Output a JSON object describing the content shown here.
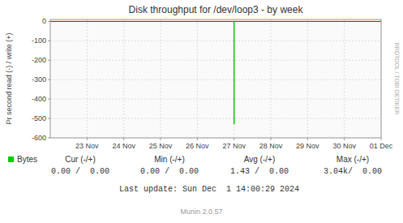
{
  "chart_data": {
    "type": "line",
    "title": "Disk throughput for /dev/loop3 - by week",
    "ylabel": "Pr second read (-) / write (+)",
    "x": [
      1732665600,
      1732665600
    ],
    "series": [
      {
        "name": "Bytes",
        "color": "#00cc00",
        "values": [
          0,
          -530
        ]
      }
    ],
    "xlim": [
      1732233600,
      1733011200
    ],
    "xticks": [
      {
        "value": 1732320000,
        "label": "23 Nov"
      },
      {
        "value": 1732406400,
        "label": "24 Nov"
      },
      {
        "value": 1732492800,
        "label": "25 Nov"
      },
      {
        "value": 1732579200,
        "label": "26 Nov"
      },
      {
        "value": 1732665600,
        "label": "27 Nov"
      },
      {
        "value": 1732752000,
        "label": "28 Nov"
      },
      {
        "value": 1732838400,
        "label": "29 Nov"
      },
      {
        "value": 1732924800,
        "label": "30 Nov"
      },
      {
        "value": 1733011200,
        "label": "01 Dec"
      }
    ],
    "ylim": [
      -600,
      10
    ],
    "yticks": [
      0,
      -100,
      -200,
      -300,
      -400,
      -500,
      -600
    ],
    "grid": true,
    "stats": [
      {
        "label": "Cur (-/+)",
        "value": "0.00 /  0.00"
      },
      {
        "label": "Min (-/+)",
        "value": "0.00 /  0.00"
      },
      {
        "label": "Avg (-/+)",
        "value": "1.43 /  0.00"
      },
      {
        "label": "Max (-/+)",
        "value": "3.04k/  0.00"
      }
    ],
    "annotations": [
      "RRDTOOL / TOBI OETIKER",
      "Last update: Sun Dec  1 14:00:29 2024",
      "Munin 2.0.57"
    ]
  }
}
